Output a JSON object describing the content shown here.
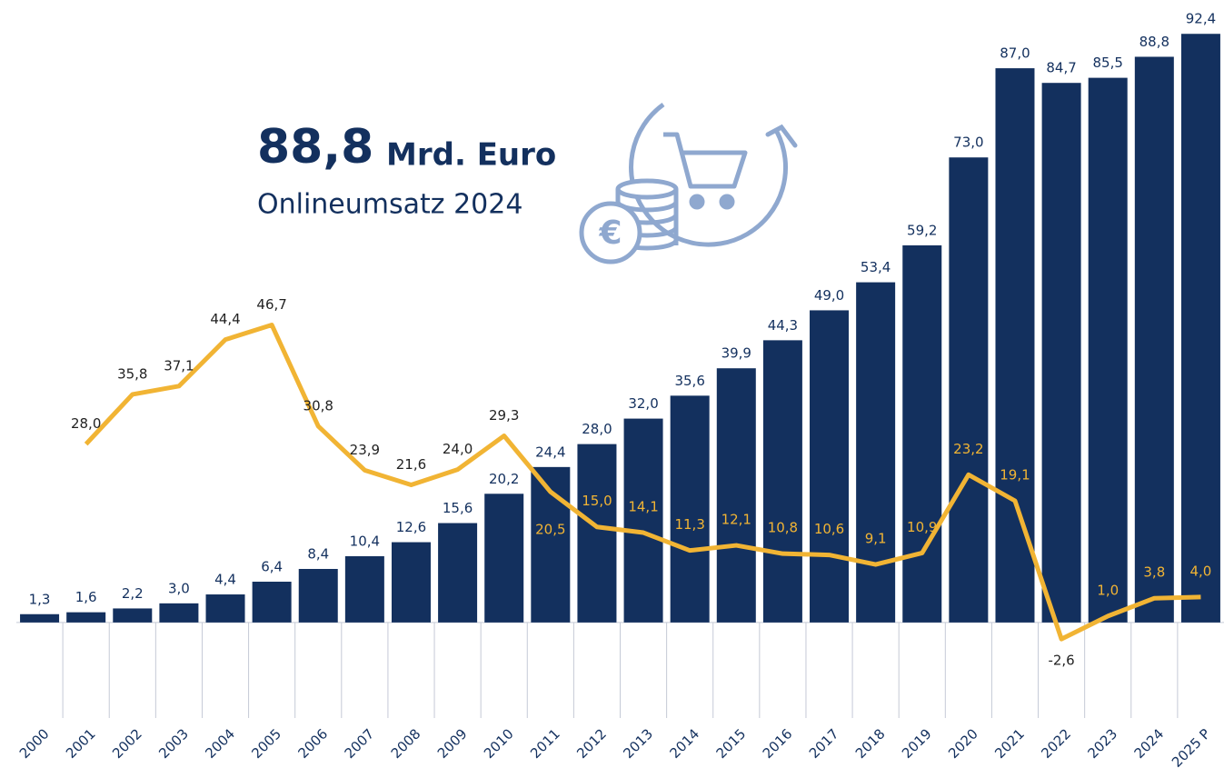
{
  "chart_data": {
    "type": "bar_line",
    "annotations": [
      "88,8",
      "Mrd. Euro",
      "Onlineumsatz 2024"
    ],
    "categories": [
      "2000",
      "2001",
      "2002",
      "2003",
      "2004",
      "2005",
      "2006",
      "2007",
      "2008",
      "2009",
      "2010",
      "2011",
      "2012",
      "2013",
      "2014",
      "2015",
      "2016",
      "2017",
      "2018",
      "2019",
      "2020",
      "2021",
      "2022",
      "2023",
      "2024",
      "2025 P"
    ],
    "ylim": [
      -15,
      97
    ],
    "series": [
      {
        "type": "bar",
        "color": "#13305e",
        "values": [
          1.3,
          1.6,
          2.2,
          3.0,
          4.4,
          6.4,
          8.4,
          10.4,
          12.6,
          15.6,
          20.2,
          24.4,
          28.0,
          32.0,
          35.6,
          39.9,
          44.3,
          49.0,
          53.4,
          59.2,
          73.0,
          87.0,
          84.7,
          85.5,
          88.8,
          92.4
        ],
        "value_labels": [
          "1,3",
          "1,6",
          "2,2",
          "3,0",
          "4,4",
          "6,4",
          "8,4",
          "10,4",
          "12,6",
          "15,6",
          "20,2",
          "24,4",
          "28,0",
          "32,0",
          "35,6",
          "39,9",
          "44,3",
          "49,0",
          "53,4",
          "59,2",
          "73,0",
          "87,0",
          "84,7",
          "85,5",
          "88,8",
          "92,4"
        ]
      },
      {
        "type": "line",
        "color": "#f1b434",
        "values": [
          null,
          28.0,
          35.8,
          37.1,
          44.4,
          46.7,
          30.8,
          23.9,
          21.6,
          24.0,
          29.3,
          20.5,
          15.0,
          14.1,
          11.3,
          12.1,
          10.8,
          10.6,
          9.1,
          10.9,
          23.2,
          19.1,
          -2.6,
          1.0,
          3.8,
          4.0
        ],
        "value_labels": [
          null,
          "28,0",
          "35,8",
          "37,1",
          "44,4",
          "46,7",
          "30,8",
          "23,9",
          "21,6",
          "24,0",
          "29,3",
          "20,5",
          "15,0",
          "14,1",
          "11,3",
          "12,1",
          "10,8",
          "10,6",
          "9,1",
          "10,9",
          "23,2",
          "19,1",
          "-2,6",
          "1,0",
          "3,8",
          "4,0"
        ]
      }
    ]
  }
}
